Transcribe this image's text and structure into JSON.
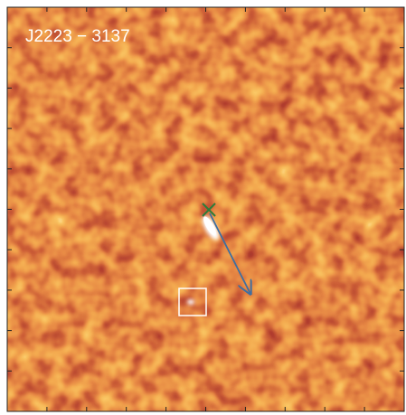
{
  "label": "J2223 − 3137"
}
